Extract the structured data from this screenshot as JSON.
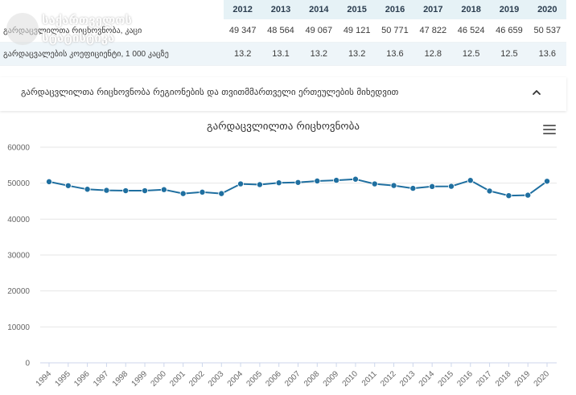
{
  "table": {
    "years": [
      "2012",
      "2013",
      "2014",
      "2015",
      "2016",
      "2017",
      "2018",
      "2019",
      "2020"
    ],
    "rows": [
      {
        "label": "გარდაცვლილთა რიცხოვნობა, კაცი",
        "values": [
          "49 347",
          "48 564",
          "49 067",
          "49 121",
          "50 771",
          "47 822",
          "46 524",
          "46 659",
          "50 537"
        ]
      },
      {
        "label": "გარდაცვალების კოეფიციენტი, 1 000 კაცზე",
        "values": [
          "13.2",
          "13.1",
          "13.2",
          "13.2",
          "13.6",
          "12.8",
          "12.5",
          "12.5",
          "13.6"
        ]
      }
    ]
  },
  "logo": {
    "line1": "საქართველოს",
    "line2": "სტატისტიკა"
  },
  "section": {
    "title": "გარდაცვლილთა რიცხოვნობა რეგიონების და თვითმმართველი ერთეულების მიხედვით",
    "collapse_icon": "chevron-up-icon"
  },
  "chart_data": {
    "type": "line",
    "title": "გარდაცვლილთა რიცხოვნობა",
    "x": [
      "1994",
      "1995",
      "1996",
      "1997",
      "1998",
      "1999",
      "2000",
      "2001",
      "2002",
      "2003",
      "2004",
      "2005",
      "2006",
      "2007",
      "2008",
      "2009",
      "2010",
      "2011",
      "2012",
      "2013",
      "2014",
      "2015",
      "2016",
      "2017",
      "2018",
      "2019",
      "2020"
    ],
    "series": [
      {
        "values": [
          50400,
          49300,
          48300,
          48000,
          47900,
          47900,
          48200,
          47100,
          47500,
          47100,
          49800,
          49600,
          50100,
          50200,
          50600,
          50800,
          51100,
          49800,
          49347,
          48564,
          49067,
          49121,
          50771,
          47822,
          46524,
          46659,
          50537
        ]
      }
    ],
    "yticks": [
      "0",
      "10000",
      "20000",
      "30000",
      "40000",
      "50000",
      "60000"
    ],
    "ylim": [
      0,
      60000
    ],
    "color": "#1f6fa0",
    "grid": true
  },
  "menu_icon": "hamburger-menu-icon"
}
